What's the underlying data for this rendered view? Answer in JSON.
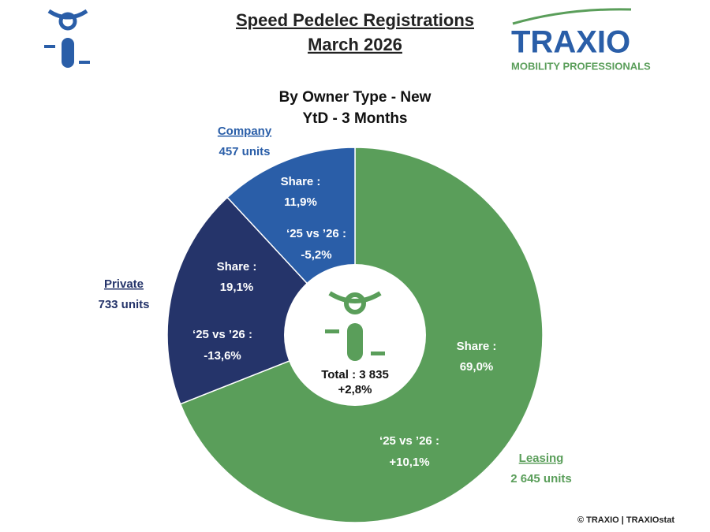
{
  "chart_data": {
    "type": "donut",
    "title": "Speed Pedelec Registrations",
    "subtitle": "March 2026",
    "chart_title": "By Owner Type - New",
    "chart_subtitle": "YtD - 3 Months",
    "categories": [
      "Leasing",
      "Private",
      "Company"
    ],
    "values": [
      69.0,
      19.1,
      11.9
    ],
    "value_labels": [
      "69,0%",
      "19,1%",
      "11,9%"
    ],
    "colors": [
      "#5a9e5a",
      "#25346a",
      "#2a5ea8"
    ],
    "unit_labels": [
      "2 645 units",
      "733 units",
      "457 units"
    ],
    "growth_labels": [
      "+10,1%",
      "-13,6%",
      "-5,2%"
    ],
    "share_label": "Share :",
    "growth_heading": "‘25 vs ’26 :",
    "total_label": "Total : 3 835",
    "total_growth_label": "+2,8%"
  },
  "logo": {
    "name": "TRAXIO",
    "tagline": "MOBILITY PROFESSIONALS"
  },
  "footer": "© TRAXIO | TRAXIOstat"
}
